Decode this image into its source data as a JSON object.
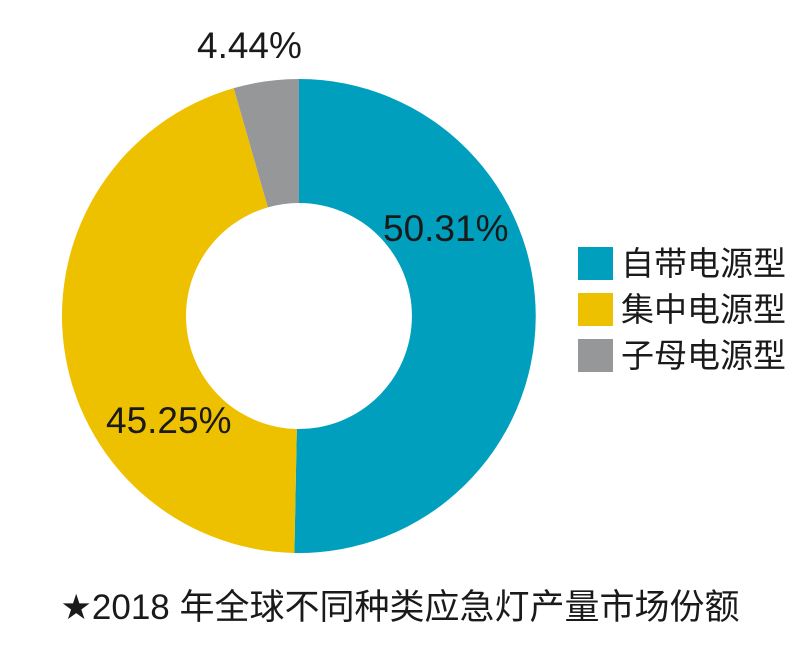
{
  "chart_data": {
    "type": "pie",
    "subtype": "donut",
    "title": "★2018 年全球不同种类应急灯产量市场份额",
    "legend_position": "right",
    "grid": false,
    "background_color": "#ffffff",
    "text_color": "#1a1a1a",
    "categories": [
      "自带电源型",
      "集中电源型",
      "子母电源型"
    ],
    "values": [
      50.31,
      45.25,
      4.44
    ],
    "slices": [
      {
        "key": "self-powered",
        "name": "自带电源型",
        "value": 50.31,
        "display": "50.31%",
        "color": "#009fbd"
      },
      {
        "key": "centralized",
        "name": "集中电源型",
        "value": 45.25,
        "display": "45.25%",
        "color": "#eec100"
      },
      {
        "key": "master-slave",
        "name": "子母电源型",
        "value": 4.44,
        "display": "4.44%",
        "color": "#959799"
      }
    ]
  }
}
